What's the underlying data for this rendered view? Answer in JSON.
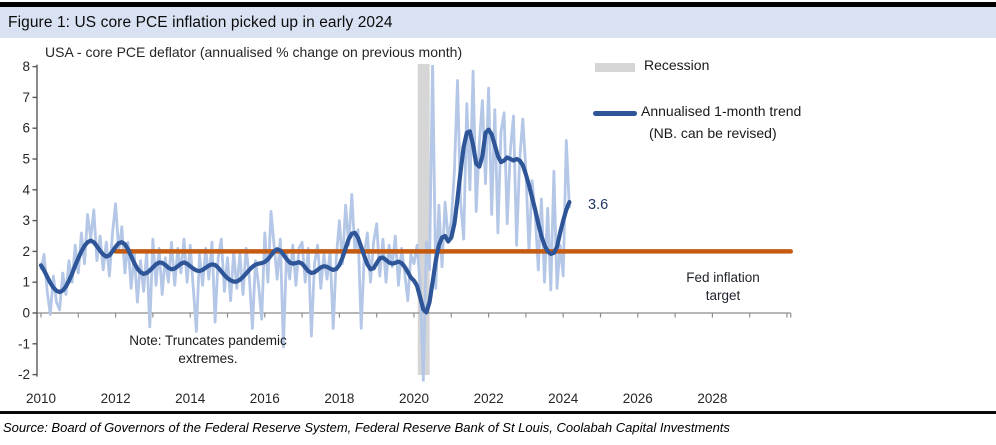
{
  "header": {
    "title": "Figure 1: US core PCE inflation picked up in early 2024"
  },
  "subtitle": "USA - core PCE deflator (annualised % change on previous month)",
  "legend": {
    "recession_label": "Recession",
    "trend_label": "Annualised 1-month trend",
    "trend_note": "(NB. can be revised)"
  },
  "annotations": {
    "last_value": "3.6",
    "note_line1": "Note: Truncates pandemic",
    "note_line2": "extremes.",
    "target_line1": "Fed inflation",
    "target_line2": "target"
  },
  "source": "Source: Board of Governors of the Federal Reserve System, Federal Reserve Bank of St Louis, Coolabah Capital Investments",
  "colors": {
    "title_band": "#d9e2f3",
    "monthly_series": "#b4c7e7",
    "trend_series": "#2e5597",
    "fed_target": "#c55a11",
    "recession": "#d6d6d6",
    "zero_axis": "#8c8c8c",
    "y_axis": "#595959"
  },
  "chart_data": {
    "type": "line",
    "title": "USA - core PCE deflator (annualised % change on previous month)",
    "xlabel": "",
    "ylabel": "annualised % change on previous month",
    "x_axis": {
      "min": 2010,
      "max": 2030.1,
      "label_ticks": [
        2010,
        2012,
        2014,
        2016,
        2018,
        2020,
        2022,
        2024,
        2026,
        2028
      ],
      "minor_tick_step_years": 1
    },
    "y_axis": {
      "min": -2,
      "max": 8,
      "ticks": [
        8,
        7,
        6,
        5,
        4,
        3,
        2,
        1,
        0,
        -1,
        -2
      ]
    },
    "grid": "off",
    "legend_position": "top-right-inside",
    "recession_bands": [
      {
        "start": 2020.1,
        "end": 2020.42
      }
    ],
    "fed_target": {
      "value": 2,
      "x_start": 2012,
      "x_end": 2030.1
    },
    "series": [
      {
        "name": "Monthly annualised % change (truncates pandemic extremes)",
        "start_year": 2010.0,
        "step_months": 1,
        "values": [
          1.4,
          1.9,
          0.7,
          -0.05,
          1.2,
          0.35,
          0.1,
          1.3,
          0.6,
          1.7,
          1.0,
          2.2,
          1.3,
          2.6,
          1.6,
          3.2,
          2.4,
          3.35,
          1.7,
          2.5,
          1.4,
          2.3,
          1.2,
          2.6,
          3.55,
          2.0,
          2.8,
          1.3,
          2.3,
          0.8,
          1.9,
          0.35,
          1.7,
          0.7,
          2.0,
          -0.45,
          2.4,
          0.9,
          2.1,
          0.6,
          1.8,
          1.0,
          2.3,
          0.9,
          2.1,
          1.3,
          2.4,
          1.0,
          2.2,
          0.8,
          -0.6,
          1.9,
          0.9,
          2.1,
          1.1,
          2.3,
          -0.3,
          1.8,
          2.4,
          0.7,
          1.8,
          0.4,
          2.0,
          0.8,
          1.9,
          0.6,
          2.1,
          1.2,
          -0.5,
          1.7,
          0.9,
          -0.2,
          2.6,
          1.0,
          3.3,
          2.2,
          1.1,
          2.4,
          -1.1,
          2.0,
          1.1,
          2.2,
          0.9,
          2.1,
          2.3,
          1.0,
          2.1,
          -0.75,
          1.6,
          2.2,
          0.8,
          1.9,
          1.1,
          2.0,
          -0.5,
          1.8,
          3.0,
          1.6,
          3.5,
          2.2,
          3.85,
          2.0,
          2.7,
          -0.5,
          1.9,
          2.6,
          1.0,
          2.3,
          2.9,
          1.2,
          2.4,
          1.0,
          2.2,
          1.5,
          2.5,
          0.9,
          2.1,
          1.3,
          0.4,
          1.9,
          1.6,
          2.2,
          0.9,
          -2.2,
          2.3,
          1.4,
          8.2,
          0.8,
          3.5,
          1.5,
          3.6,
          2.4,
          3.0,
          4.6,
          7.55,
          3.6,
          2.4,
          6.8,
          4.0,
          7.85,
          3.3,
          5.5,
          6.9,
          4.2,
          7.3,
          3.2,
          6.6,
          2.6,
          5.9,
          6.5,
          2.9,
          5.3,
          6.4,
          2.2,
          5.0,
          6.3,
          4.6,
          2.0,
          4.3,
          3.2,
          1.4,
          3.7,
          1.0,
          3.4,
          0.75,
          4.6,
          0.8,
          2.2,
          1.2,
          5.6,
          3.4
        ]
      },
      {
        "name": "Annualised 1-month trend (NB. can be revised)",
        "start_year": 2010.0,
        "step_months": 1,
        "end_label": "3.6",
        "values": [
          1.55,
          1.38,
          1.18,
          0.98,
          0.82,
          0.72,
          0.68,
          0.73,
          0.86,
          1.05,
          1.28,
          1.54,
          1.78,
          2.0,
          2.18,
          2.3,
          2.35,
          2.3,
          2.17,
          2.02,
          1.9,
          1.83,
          1.87,
          2.0,
          2.15,
          2.27,
          2.3,
          2.23,
          2.07,
          1.85,
          1.62,
          1.44,
          1.32,
          1.27,
          1.3,
          1.38,
          1.48,
          1.58,
          1.64,
          1.63,
          1.56,
          1.47,
          1.42,
          1.44,
          1.52,
          1.6,
          1.64,
          1.6,
          1.52,
          1.44,
          1.38,
          1.36,
          1.4,
          1.47,
          1.54,
          1.58,
          1.56,
          1.47,
          1.35,
          1.23,
          1.13,
          1.06,
          1.02,
          1.02,
          1.08,
          1.17,
          1.28,
          1.4,
          1.5,
          1.57,
          1.6,
          1.62,
          1.66,
          1.74,
          1.87,
          2.0,
          2.07,
          2.03,
          1.9,
          1.75,
          1.64,
          1.6,
          1.62,
          1.65,
          1.6,
          1.48,
          1.36,
          1.3,
          1.32,
          1.4,
          1.48,
          1.52,
          1.5,
          1.44,
          1.4,
          1.43,
          1.56,
          1.8,
          2.1,
          2.4,
          2.58,
          2.6,
          2.44,
          2.15,
          1.85,
          1.58,
          1.42,
          1.45,
          1.62,
          1.78,
          1.8,
          1.72,
          1.64,
          1.6,
          1.63,
          1.67,
          1.62,
          1.5,
          1.33,
          1.15,
          1.05,
          0.88,
          0.5,
          0.12,
          0.02,
          0.35,
          1.0,
          1.7,
          2.2,
          2.45,
          2.5,
          2.32,
          2.45,
          2.9,
          3.7,
          4.6,
          5.4,
          5.85,
          5.9,
          5.45,
          4.85,
          4.75,
          5.1,
          5.85,
          5.95,
          5.8,
          5.45,
          5.1,
          4.9,
          4.95,
          5.05,
          5.0,
          4.95,
          5.0,
          4.95,
          4.8,
          4.5,
          4.15,
          3.75,
          3.35,
          2.9,
          2.5,
          2.2,
          2.0,
          1.92,
          1.95,
          2.15,
          2.6,
          3.0,
          3.35,
          3.6
        ]
      }
    ]
  }
}
